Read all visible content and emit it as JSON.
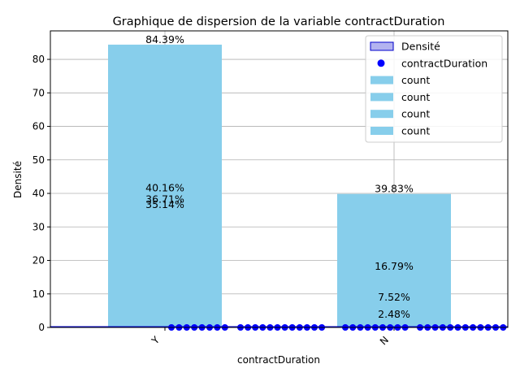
{
  "chart_data": {
    "type": "bar",
    "title": "Graphique de dispersion de la variable contractDuration",
    "xlabel": "contractDuration",
    "ylabel": "Densité",
    "ylim": [
      0,
      88.5
    ],
    "yticks": [
      0,
      10,
      20,
      30,
      40,
      50,
      60,
      70,
      80
    ],
    "categories": [
      "Y",
      "N"
    ],
    "bars": [
      {
        "category": "Y",
        "value": 84.39
      },
      {
        "category": "N",
        "value": 39.83
      }
    ],
    "grid": true,
    "legend_position": "top-right",
    "legend": [
      {
        "label": "Densité",
        "kind": "patch"
      },
      {
        "label": "contractDuration",
        "kind": "marker"
      },
      {
        "label": "count",
        "kind": "patch"
      },
      {
        "label": "count",
        "kind": "patch"
      },
      {
        "label": "count",
        "kind": "patch"
      },
      {
        "label": "count",
        "kind": "patch"
      }
    ],
    "annotations": [
      {
        "text": "84.39%",
        "category": "Y",
        "y": 84.39
      },
      {
        "text": "40.16%",
        "category": "Y",
        "y": 40.16
      },
      {
        "text": "36.71%",
        "category": "Y",
        "y": 36.71
      },
      {
        "text": "35.14%",
        "category": "Y",
        "y": 35.14
      },
      {
        "text": "39.83%",
        "category": "N",
        "y": 39.83
      },
      {
        "text": "16.79%",
        "category": "N",
        "y": 16.79
      },
      {
        "text": "7.52%",
        "category": "N",
        "y": 7.52
      },
      {
        "text": "2.48%",
        "category": "N",
        "y": 2.48
      }
    ],
    "scatter_series": {
      "name": "contractDuration",
      "y": 0
    },
    "colors": {
      "bar": "#87ceeb",
      "density": "#0000cc",
      "density_fill": "#b3b3f0",
      "points": "#0000ff",
      "grid": "#b0b0b0"
    }
  }
}
